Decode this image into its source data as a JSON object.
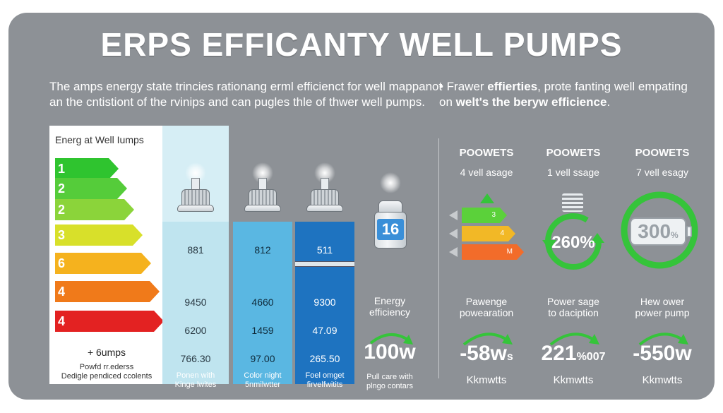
{
  "title": "ERPS EFFICANTY WELL PUMPS",
  "intro": {
    "line1": "The amps energy state trincies rationang erml efficienct for well mappanot",
    "line2": "an the cntistiont of the rvinips and can pugles thle of thwer well pumps.",
    "right_prefix": "• Frawer ",
    "right_bold1": "effierties",
    "right_mid": ", prote fanting well empating",
    "right_line2_pre": "on ",
    "right_bold2": "welt's the beryw efficience",
    "right_line2_post": "."
  },
  "energy_panel": {
    "title": "Energ at Well Iumps",
    "bars": [
      {
        "label": "1",
        "color": "#2fc42f"
      },
      {
        "label": "2",
        "color": "#55cc3a"
      },
      {
        "label": "2",
        "color": "#8bd43a"
      },
      {
        "label": "3",
        "color": "#d8e02a"
      },
      {
        "label": "6",
        "color": "#f5b21e"
      },
      {
        "label": "4",
        "color": "#f07a1a"
      },
      {
        "label": "4",
        "color": "#e32222"
      }
    ],
    "foot_main": "+ 6umps",
    "foot_line1": "Powfd rr.ederss",
    "foot_line2": "Dedigle pendiced ccolents"
  },
  "pumps": [
    {
      "top": "881",
      "v1": "9450",
      "v2": "6200",
      "v3": "766.30",
      "cap1": "Ponen with",
      "cap2": "Kinge lwites",
      "bg": "#bfe4ef",
      "fg": "#2a3a44",
      "capfg": "#ffffff"
    },
    {
      "top": "812",
      "v1": "4660",
      "v2": "1459",
      "v3": "97.00",
      "cap1": "Color night",
      "cap2": "5nmilwtter",
      "bg": "#5ab7e2",
      "fg": "#0f2a3a",
      "capfg": "#ffffff"
    },
    {
      "top": "511",
      "v1": "9300",
      "v2": "47.09",
      "v3": "265.50",
      "cap1": "Foel omget",
      "cap2": "firvelfwitits",
      "bg": "#1e73c0",
      "fg": "#ffffff",
      "capfg": "#ffffff"
    }
  ],
  "fourth": {
    "badge": "16",
    "label1": "Energy",
    "label2": "efficiency",
    "big": "100w",
    "cap1": "Pull care with",
    "cap2": "plngo contars"
  },
  "right_cols": [
    {
      "head": "POOWETS",
      "sub": "4 vell asage",
      "l1": "Pawenge",
      "l2": "powearation",
      "big": "-58w",
      "big_suffix": "s",
      "unit": "Kkmwtts"
    },
    {
      "head": "POOWETS",
      "sub": "1 vell ssage",
      "l1": "Power sage",
      "l2": "to daciption",
      "big": "221",
      "big_suffix": "%007",
      "unit": "Kkmwtts"
    },
    {
      "head": "POOWETS",
      "sub": "7 vell esagy",
      "l1": "Hew ower",
      "l2": "power pump",
      "big": "-550w",
      "big_suffix": "",
      "unit": "Kkmwtts"
    }
  ],
  "mini_bars": [
    {
      "label": "3",
      "color": "#5bd13a"
    },
    {
      "label": "4",
      "color": "#f2b826"
    },
    {
      "label": "M",
      "color": "#f26c2a"
    }
  ],
  "gauge_mid": "260%",
  "gauge_right": "300",
  "gauge_right_suffix": "%",
  "colors": {
    "accent_green": "#35c43a",
    "card_bg": "#8d9196"
  }
}
